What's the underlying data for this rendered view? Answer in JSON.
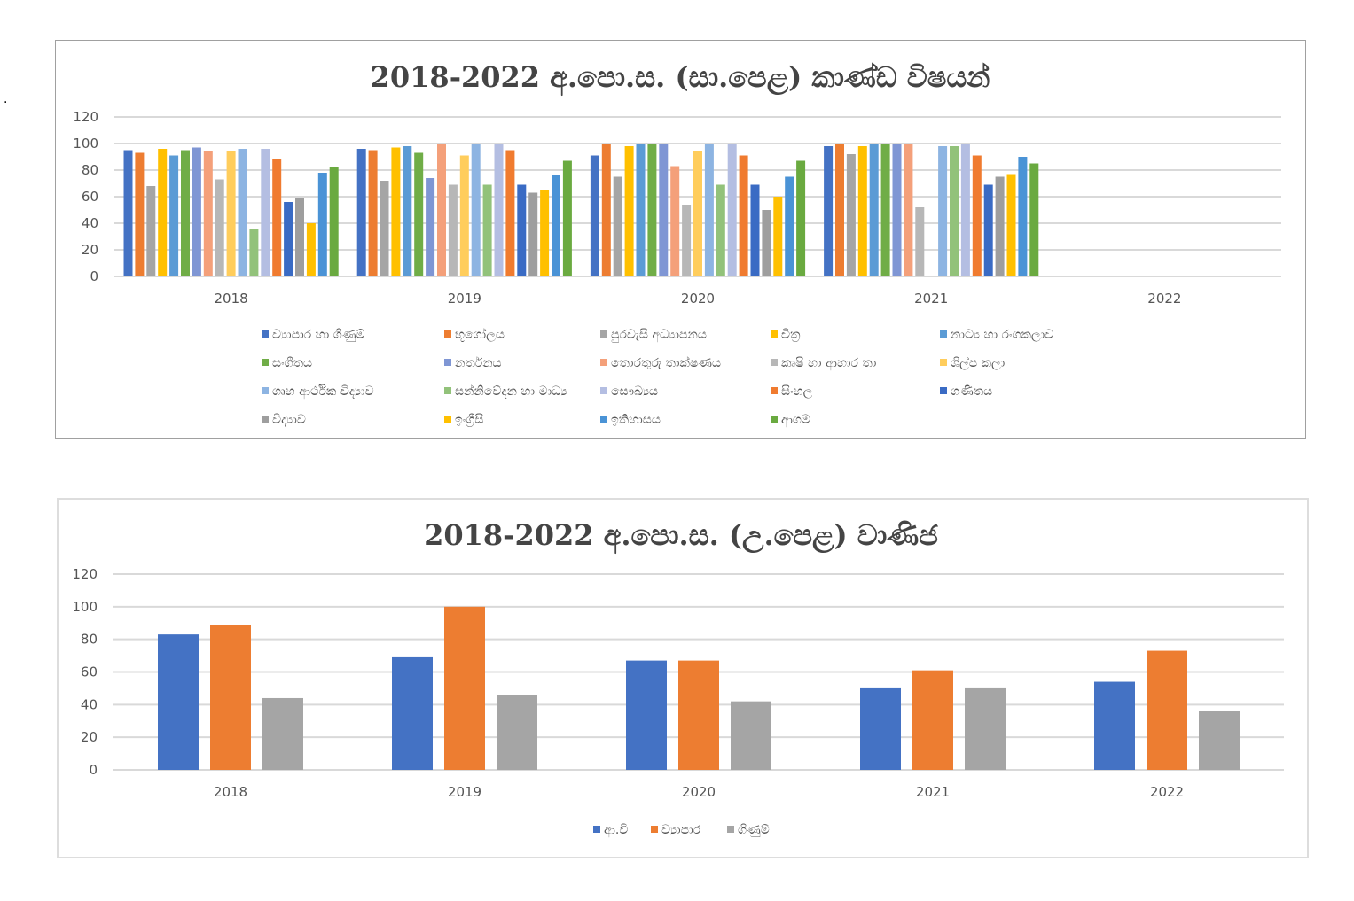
{
  "chart_data": [
    {
      "type": "bar",
      "title": "2018-2022  අ.පො.ස. (සා.පෙළ) කාණ්ඩ විෂයන්",
      "xlabel": "",
      "ylabel": "",
      "ylim": [
        0,
        120
      ],
      "yticks": [
        0,
        20,
        40,
        60,
        80,
        100,
        120
      ],
      "grid": true,
      "legend_placement": "bottom",
      "categories": [
        "2018",
        "2019",
        "2020",
        "2021",
        "2022"
      ],
      "series": [
        {
          "name": "ව්‍යාපාර හා ගිණුම්",
          "color": "#4472C4",
          "values": [
            95,
            96,
            91,
            98,
            null
          ]
        },
        {
          "name": "භූගෝලය",
          "color": "#ED7D31",
          "values": [
            93,
            95,
            100,
            100,
            null
          ]
        },
        {
          "name": "පුරවැසි අධ්‍යාපනය",
          "color": "#A5A5A5",
          "values": [
            68,
            72,
            75,
            92,
            null
          ]
        },
        {
          "name": "චිත්‍ර",
          "color": "#FFC000",
          "values": [
            96,
            97,
            98,
            98,
            null
          ]
        },
        {
          "name": "නාට්‍ය හා රංගකලාව",
          "color": "#5B9BD5",
          "values": [
            91,
            98,
            100,
            100,
            null
          ]
        },
        {
          "name": "සංගීතය",
          "color": "#70AD47",
          "values": [
            95,
            93,
            100,
            100,
            null
          ]
        },
        {
          "name": "නර්තනය",
          "color": "#7F96D4",
          "values": [
            97,
            74,
            100,
            100,
            null
          ]
        },
        {
          "name": "තොරතුරු තාක්ෂණය",
          "color": "#F4A07A",
          "values": [
            94,
            100,
            83,
            100,
            null
          ]
        },
        {
          "name": "කෘෂි හා ආහාර තා",
          "color": "#B7B7B7",
          "values": [
            73,
            69,
            54,
            52,
            null
          ]
        },
        {
          "name": "ශිල්ප කලා",
          "color": "#FFCD5C",
          "values": [
            94,
            91,
            94,
            null,
            null
          ]
        },
        {
          "name": "ගෘහ ආර්ථික විද්‍යාව",
          "color": "#8DB4E2",
          "values": [
            96,
            100,
            100,
            98,
            null
          ]
        },
        {
          "name": "සන්නිවේදන හා මාධ්‍ය",
          "color": "#92C27A",
          "values": [
            36,
            69,
            69,
            98,
            null
          ]
        },
        {
          "name": "සෞඛ්‍යය",
          "color": "#B4BEE2",
          "values": [
            96,
            100,
            100,
            100,
            null
          ]
        },
        {
          "name": "සිංහල",
          "color": "#F07B2F",
          "values": [
            88,
            95,
            91,
            91,
            null
          ]
        },
        {
          "name": "ගණිතය",
          "color": "#3A6BC4",
          "values": [
            56,
            69,
            69,
            69,
            null
          ]
        },
        {
          "name": "විද්‍යාව",
          "color": "#9E9E9E",
          "values": [
            59,
            63,
            50,
            75,
            null
          ]
        },
        {
          "name": "ඉංග්‍රීසි",
          "color": "#FFC000",
          "values": [
            40,
            65,
            60,
            77,
            null
          ]
        },
        {
          "name": "ඉතිහාසය",
          "color": "#4A93D6",
          "values": [
            78,
            76,
            75,
            90,
            null
          ]
        },
        {
          "name": "ආගම",
          "color": "#6AAA40",
          "values": [
            82,
            87,
            87,
            85,
            null
          ]
        }
      ]
    },
    {
      "type": "bar",
      "title": "2018-2022  අ.පො.ස. (උ.පෙළ) වාණිජ",
      "xlabel": "",
      "ylabel": "",
      "ylim": [
        0,
        120
      ],
      "yticks": [
        0,
        20,
        40,
        60,
        80,
        100,
        120
      ],
      "grid": true,
      "legend_placement": "bottom",
      "categories": [
        "2018",
        "2019",
        "2020",
        "2021",
        "2022"
      ],
      "series": [
        {
          "name": "ආ.වි",
          "color": "#4472C4",
          "values": [
            83,
            69,
            67,
            50,
            54
          ]
        },
        {
          "name": "ව්‍යාපාර",
          "color": "#ED7D31",
          "values": [
            89,
            100,
            67,
            61,
            73
          ]
        },
        {
          "name": "ගිණුම්",
          "color": "#A5A5A5",
          "values": [
            44,
            46,
            42,
            50,
            36
          ]
        }
      ]
    }
  ]
}
